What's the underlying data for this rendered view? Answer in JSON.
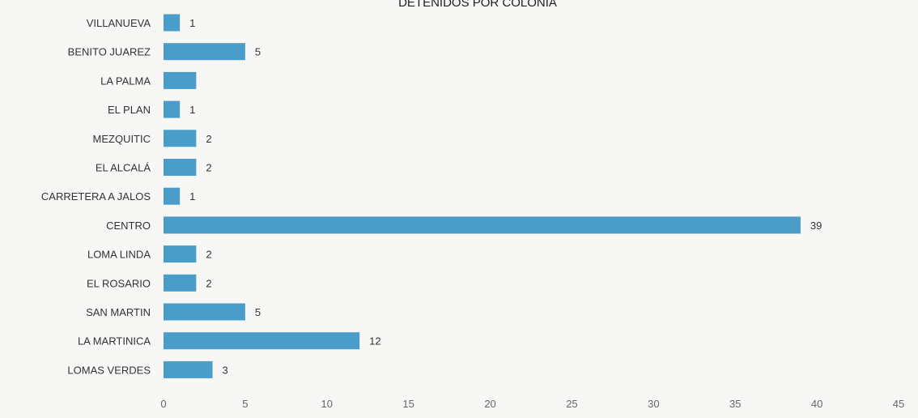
{
  "chart_data": {
    "type": "bar",
    "orientation": "horizontal",
    "title": "DETENIDOS POR COLONIA",
    "categories": [
      "VILLANUEVA",
      "BENITO JUAREZ",
      "LA PALMA",
      "EL PLAN",
      "MEZQUITIC",
      "EL ALCALÁ",
      "CARRETERA A JALOS",
      "CENTRO",
      "LOMA LINDA",
      "EL ROSARIO",
      "SAN MARTIN",
      "LA MARTINICA",
      "LOMAS VERDES"
    ],
    "values": [
      1,
      5,
      2,
      1,
      2,
      2,
      1,
      39,
      2,
      2,
      5,
      12,
      3
    ],
    "data_labels": [
      "1",
      "5",
      "",
      "1",
      "2",
      "2",
      "1",
      "39",
      "2",
      "2",
      "5",
      "12",
      "3"
    ],
    "xlim": [
      0,
      45
    ],
    "xticks": [
      0,
      5,
      10,
      15,
      20,
      25,
      30,
      35,
      40,
      45
    ],
    "bar_color": "#4a9cc9",
    "grid": false,
    "legend": "none"
  }
}
